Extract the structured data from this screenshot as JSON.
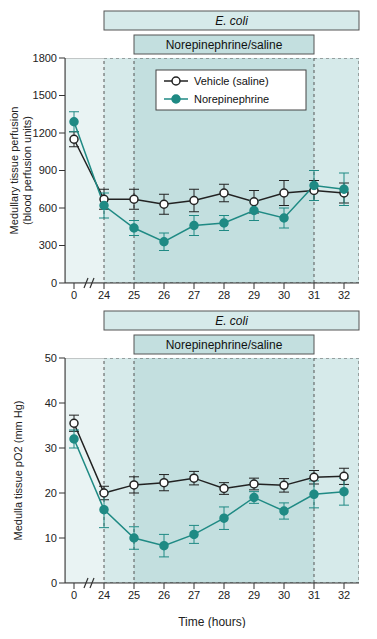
{
  "chart_data": [
    {
      "type": "line",
      "y_label": "Medullary tissue perfusion (blood perfusion units)",
      "categories": [
        "0",
        "24",
        "25",
        "26",
        "27",
        "28",
        "29",
        "30",
        "31",
        "32"
      ],
      "ylim": [
        0,
        1800
      ],
      "yticks": [
        0,
        300,
        600,
        900,
        1200,
        1500,
        1800
      ],
      "grid": false,
      "legend": "upper center",
      "bands": [
        {
          "label": "E. coli",
          "from": "24",
          "to": "32"
        },
        {
          "label": "Norepinephrine/saline",
          "from": "25",
          "to": "31"
        }
      ],
      "series": [
        {
          "name": "Vehicle (saline)",
          "color": "#222222",
          "marker": "open_circle",
          "values": [
            1150,
            670,
            670,
            630,
            660,
            720,
            650,
            720,
            740,
            720
          ],
          "errors": [
            60,
            80,
            80,
            80,
            90,
            70,
            90,
            100,
            80,
            80
          ]
        },
        {
          "name": "Norepinephrine",
          "color": "#1f8a84",
          "marker": "circle",
          "values": [
            1290,
            620,
            440,
            330,
            460,
            480,
            580,
            520,
            780,
            750
          ],
          "errors": [
            80,
            100,
            60,
            70,
            80,
            60,
            80,
            80,
            120,
            130
          ]
        }
      ]
    },
    {
      "type": "line",
      "y_label": "Medulla tissue pO2 (mm Hg)",
      "x_label": "Time (hours)",
      "categories": [
        "0",
        "24",
        "25",
        "26",
        "27",
        "28",
        "29",
        "30",
        "31",
        "32"
      ],
      "ylim": [
        0,
        50
      ],
      "yticks": [
        0,
        10,
        20,
        30,
        40,
        50
      ],
      "grid": false,
      "bands": [
        {
          "label": "E. coli",
          "from": "24",
          "to": "32"
        },
        {
          "label": "Norepinephrine/saline",
          "from": "25",
          "to": "31"
        }
      ],
      "series": [
        {
          "name": "Vehicle (saline)",
          "color": "#222222",
          "marker": "open_circle",
          "values": [
            35.5,
            20,
            21.8,
            22.3,
            23.3,
            21,
            22,
            21.7,
            23.5,
            23.7
          ],
          "errors": [
            1.8,
            1.5,
            1.8,
            1.8,
            1.5,
            1.3,
            1.3,
            1.5,
            1.5,
            1.8
          ]
        },
        {
          "name": "Norepinephrine",
          "color": "#1f8a84",
          "marker": "circle",
          "values": [
            32,
            16.3,
            10,
            8.3,
            10.8,
            14.4,
            19,
            16,
            19.7,
            20.3
          ],
          "errors": [
            2,
            4,
            2.5,
            2.5,
            2,
            2.5,
            1.3,
            1.8,
            3,
            3
          ]
        }
      ]
    }
  ]
}
